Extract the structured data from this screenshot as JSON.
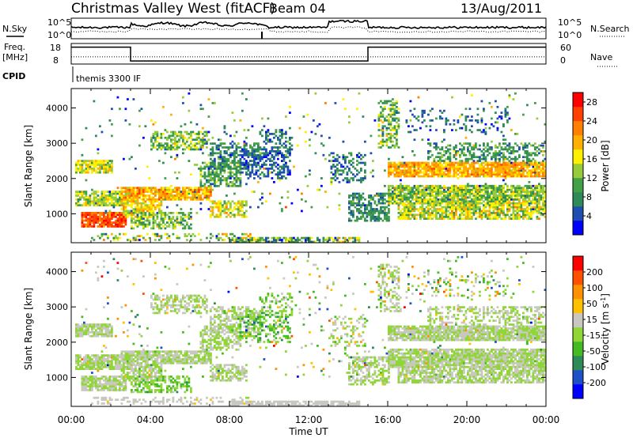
{
  "header": {
    "station": "Christmas Valley West (fitACF)",
    "beam": "Beam 04",
    "date": "13/Aug/2011"
  },
  "top_panels": {
    "nsky_label": "N.Sky",
    "nsky_ticks": [
      "10^5",
      "10^0"
    ],
    "nsearch_label": "N.Search",
    "nsearch_ticks": [
      "10^5",
      "10^0"
    ],
    "freq_label_1": "Freq.",
    "freq_label_2": "[MHz]",
    "freq_ticks": [
      "18",
      "8"
    ],
    "nave_label": "Nave",
    "nave_ticks": [
      "60",
      "0"
    ],
    "cpid_label": "CPID",
    "cpid_text": "themis 3300 IF"
  },
  "colors": {
    "power": [
      "#0000ff",
      "#1e4fb0",
      "#2e8b57",
      "#44a046",
      "#96cc3c",
      "#fff000",
      "#ffb000",
      "#ff8000",
      "#ff4000",
      "#ff0000"
    ],
    "velocity": [
      "#0000ff",
      "#1e50c8",
      "#2e8b57",
      "#44bb22",
      "#8fd636",
      "#c8c8c0",
      "#ffc000",
      "#ff9000",
      "#ff5000",
      "#ff0000"
    ]
  },
  "chart_data": [
    {
      "type": "heatmap",
      "name": "power",
      "xlabel": "",
      "ylabel": "Slant Range [km]",
      "x_unit": "hours UT",
      "xlim": [
        0,
        24
      ],
      "ylim": [
        180,
        4550
      ],
      "yticks": [
        "1000",
        "2000",
        "3000",
        "4000"
      ],
      "colorbar_label": "Power [dB]",
      "colorbar_ticks": [
        "4",
        "8",
        "12",
        "16",
        "20",
        "24",
        "28"
      ],
      "colorbar_range": [
        0,
        30
      ],
      "bands": [
        {
          "x0": 0.2,
          "x1": 2.0,
          "y0": 2150,
          "y1": 2500,
          "level": 15,
          "spread": 5,
          "density": 0.85
        },
        {
          "x0": 0.2,
          "x1": 3.0,
          "y0": 1250,
          "y1": 1650,
          "level": 14,
          "spread": 5,
          "density": 0.85
        },
        {
          "x0": 0.5,
          "x1": 2.8,
          "y0": 650,
          "y1": 1050,
          "level": 25,
          "spread": 4,
          "density": 0.9
        },
        {
          "x0": 2.5,
          "x1": 7.0,
          "y0": 1400,
          "y1": 1750,
          "level": 20,
          "spread": 5,
          "density": 0.85
        },
        {
          "x0": 2.5,
          "x1": 4.5,
          "y0": 900,
          "y1": 1350,
          "level": 17,
          "spread": 5,
          "density": 0.75
        },
        {
          "x0": 3.0,
          "x1": 6.0,
          "y0": 600,
          "y1": 1000,
          "level": 12,
          "spread": 5,
          "density": 0.55
        },
        {
          "x0": 4.0,
          "x1": 6.8,
          "y0": 2850,
          "y1": 3300,
          "level": 12,
          "spread": 5,
          "density": 0.55
        },
        {
          "x0": 6.5,
          "x1": 8.5,
          "y0": 1800,
          "y1": 2450,
          "level": 10,
          "spread": 5,
          "density": 0.6
        },
        {
          "x0": 7.0,
          "x1": 9.5,
          "y0": 2300,
          "y1": 3000,
          "level": 8,
          "spread": 4,
          "density": 0.5
        },
        {
          "x0": 7.0,
          "x1": 8.8,
          "y0": 900,
          "y1": 1350,
          "level": 16,
          "spread": 5,
          "density": 0.6
        },
        {
          "x0": 8.5,
          "x1": 11.0,
          "y0": 2000,
          "y1": 2750,
          "level": 5,
          "spread": 3,
          "density": 0.45
        },
        {
          "x0": 9.5,
          "x1": 11.2,
          "y0": 2700,
          "y1": 3350,
          "level": 6,
          "spread": 3,
          "density": 0.35
        },
        {
          "x0": 1.0,
          "x1": 9.0,
          "y0": 250,
          "y1": 420,
          "level": 14,
          "spread": 8,
          "density": 0.35
        },
        {
          "x0": 8.0,
          "x1": 14.5,
          "y0": 190,
          "y1": 320,
          "level": 11,
          "spread": 8,
          "density": 0.75
        },
        {
          "x0": 13.2,
          "x1": 14.8,
          "y0": 1900,
          "y1": 2700,
          "level": 7,
          "spread": 4,
          "density": 0.35
        },
        {
          "x0": 14.0,
          "x1": 16.0,
          "y0": 800,
          "y1": 1600,
          "level": 8,
          "spread": 4,
          "density": 0.55
        },
        {
          "x0": 15.5,
          "x1": 16.5,
          "y0": 2900,
          "y1": 4200,
          "level": 12,
          "spread": 6,
          "density": 0.45
        },
        {
          "x0": 16.0,
          "x1": 24.0,
          "y0": 2050,
          "y1": 2450,
          "level": 20,
          "spread": 4,
          "density": 0.9
        },
        {
          "x0": 16.0,
          "x1": 24.0,
          "y0": 1300,
          "y1": 1800,
          "level": 13,
          "spread": 6,
          "density": 0.85
        },
        {
          "x0": 16.5,
          "x1": 24.0,
          "y0": 850,
          "y1": 1300,
          "level": 15,
          "spread": 6,
          "density": 0.75
        },
        {
          "x0": 18.0,
          "x1": 24.0,
          "y0": 2500,
          "y1": 3000,
          "level": 9,
          "spread": 4,
          "density": 0.4
        },
        {
          "x0": 17.0,
          "x1": 22.0,
          "y0": 3300,
          "y1": 4000,
          "level": 6,
          "spread": 4,
          "density": 0.15
        },
        {
          "x0": 0.5,
          "x1": 24.0,
          "y0": 1000,
          "y1": 4400,
          "level": 10,
          "spread": 10,
          "density": 0.025
        }
      ]
    },
    {
      "type": "heatmap",
      "name": "velocity",
      "xlabel": "Time UT",
      "ylabel": "Slant Range [km]",
      "x_unit": "hours UT",
      "xlim": [
        0,
        24
      ],
      "xticks": [
        "00:00",
        "04:00",
        "08:00",
        "12:00",
        "16:00",
        "20:00",
        "00:00"
      ],
      "ylim": [
        180,
        4550
      ],
      "yticks": [
        "1000",
        "2000",
        "3000",
        "4000"
      ],
      "colorbar_label": "Velocity [m s^-1]",
      "colorbar_ticks": [
        "200",
        "100",
        "50",
        "15",
        "-15",
        "-50",
        "-100",
        "-200"
      ],
      "colorbar_range": [
        -250,
        250
      ],
      "bands": [
        {
          "x0": 0.2,
          "x1": 2.0,
          "y0": 2150,
          "y1": 2500,
          "level": 0,
          "spread": 12,
          "density": 0.85
        },
        {
          "x0": 0.2,
          "x1": 3.0,
          "y0": 1250,
          "y1": 1650,
          "level": 0,
          "spread": 12,
          "density": 0.85
        },
        {
          "x0": 0.5,
          "x1": 2.8,
          "y0": 650,
          "y1": 1050,
          "level": 0,
          "spread": 12,
          "density": 0.85
        },
        {
          "x0": 2.5,
          "x1": 7.0,
          "y0": 1400,
          "y1": 1750,
          "level": 0,
          "spread": 12,
          "density": 0.85
        },
        {
          "x0": 2.5,
          "x1": 4.5,
          "y0": 900,
          "y1": 1350,
          "level": 0,
          "spread": 14,
          "density": 0.75
        },
        {
          "x0": 3.0,
          "x1": 6.0,
          "y0": 600,
          "y1": 1000,
          "level": -40,
          "spread": 50,
          "density": 0.5
        },
        {
          "x0": 4.0,
          "x1": 6.8,
          "y0": 2850,
          "y1": 3300,
          "level": 0,
          "spread": 30,
          "density": 0.5
        },
        {
          "x0": 6.5,
          "x1": 8.5,
          "y0": 1800,
          "y1": 2450,
          "level": 0,
          "spread": 14,
          "density": 0.6
        },
        {
          "x0": 7.0,
          "x1": 9.5,
          "y0": 2300,
          "y1": 3000,
          "level": 0,
          "spread": 30,
          "density": 0.45
        },
        {
          "x0": 7.0,
          "x1": 8.8,
          "y0": 900,
          "y1": 1350,
          "level": 0,
          "spread": 14,
          "density": 0.6
        },
        {
          "x0": 8.5,
          "x1": 11.0,
          "y0": 2000,
          "y1": 2750,
          "level": -60,
          "spread": 80,
          "density": 0.35
        },
        {
          "x0": 9.5,
          "x1": 11.2,
          "y0": 2700,
          "y1": 3350,
          "level": -40,
          "spread": 60,
          "density": 0.3
        },
        {
          "x0": 1.0,
          "x1": 9.0,
          "y0": 250,
          "y1": 420,
          "level": 25,
          "spread": 25,
          "density": 0.3
        },
        {
          "x0": 8.0,
          "x1": 14.5,
          "y0": 190,
          "y1": 320,
          "level": 30,
          "spread": 18,
          "density": 0.75
        },
        {
          "x0": 13.2,
          "x1": 14.8,
          "y0": 1900,
          "y1": 2700,
          "level": 0,
          "spread": 60,
          "density": 0.3
        },
        {
          "x0": 14.0,
          "x1": 16.0,
          "y0": 800,
          "y1": 1600,
          "level": 0,
          "spread": 40,
          "density": 0.5
        },
        {
          "x0": 15.5,
          "x1": 16.5,
          "y0": 2900,
          "y1": 4200,
          "level": 0,
          "spread": 40,
          "density": 0.4
        },
        {
          "x0": 16.0,
          "x1": 24.0,
          "y0": 2050,
          "y1": 2450,
          "level": 0,
          "spread": 12,
          "density": 0.9
        },
        {
          "x0": 16.0,
          "x1": 24.0,
          "y0": 1300,
          "y1": 1800,
          "level": 0,
          "spread": 12,
          "density": 0.85
        },
        {
          "x0": 16.5,
          "x1": 24.0,
          "y0": 850,
          "y1": 1300,
          "level": 0,
          "spread": 16,
          "density": 0.75
        },
        {
          "x0": 18.0,
          "x1": 24.0,
          "y0": 2500,
          "y1": 3000,
          "level": 0,
          "spread": 40,
          "density": 0.4
        },
        {
          "x0": 17.0,
          "x1": 22.0,
          "y0": 3300,
          "y1": 4000,
          "level": 0,
          "spread": 150,
          "density": 0.15
        },
        {
          "x0": 0.5,
          "x1": 24.0,
          "y0": 1000,
          "y1": 4400,
          "level": 0,
          "spread": 160,
          "density": 0.025
        }
      ]
    }
  ]
}
